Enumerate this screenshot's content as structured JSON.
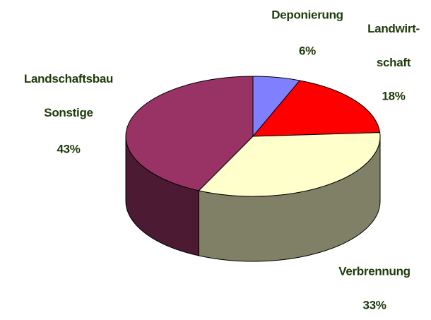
{
  "chart_data": {
    "type": "pie3d",
    "categories": [
      "Deponierung",
      "Landwirt-\nschaft",
      "Verbrennung",
      "Landschaftsbau\nSonstige"
    ],
    "values": [
      6,
      18,
      33,
      43
    ],
    "value_labels": [
      "6%",
      "18%",
      "33%",
      "43%"
    ],
    "colors": [
      "#8080ff",
      "#ff0000",
      "#ffffcc",
      "#993366"
    ]
  }
}
